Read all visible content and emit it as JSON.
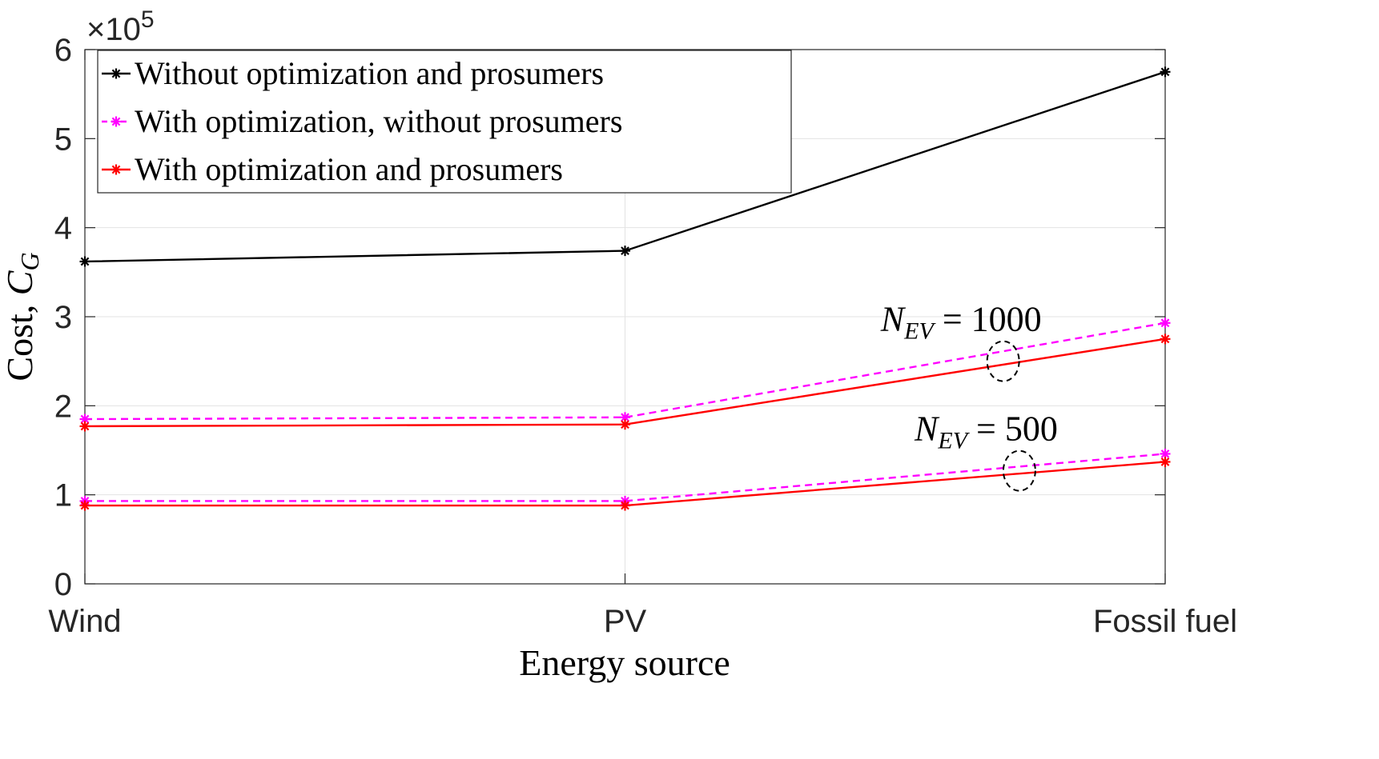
{
  "chart_data": {
    "type": "line",
    "categories": [
      "Wind",
      "PV",
      "Fossil fuel"
    ],
    "xlabel": "Energy source",
    "ylabel_text": "Cost, ",
    "ylabel_symbol": "C",
    "ylabel_subscript": "G",
    "ylim": [
      0,
      6
    ],
    "yticks": [
      "0",
      "1",
      "2",
      "3",
      "4",
      "5",
      "6"
    ],
    "exponent_times": "×10",
    "exponent_power": "5",
    "grid": true,
    "legend_position": "top-left",
    "series": [
      {
        "name": "Without optimization and prosumers",
        "color": "#000000",
        "style": "solid",
        "values": [
          3.62,
          3.74,
          5.75
        ]
      },
      {
        "name": "With optimization, without prosumers",
        "color": "#ff00ff",
        "style": "dashed",
        "group": "N_EV = 1000",
        "values": [
          1.85,
          1.87,
          2.93
        ]
      },
      {
        "name": "With optimization and prosumers",
        "color": "#ff0000",
        "style": "solid",
        "group": "N_EV = 1000",
        "values": [
          1.77,
          1.79,
          2.75
        ]
      },
      {
        "name": "With optimization, without prosumers",
        "color": "#ff00ff",
        "style": "dashed",
        "group": "N_EV = 500",
        "values": [
          0.93,
          0.93,
          1.46
        ]
      },
      {
        "name": "With optimization and prosumers",
        "color": "#ff0000",
        "style": "solid",
        "group": "N_EV = 500",
        "values": [
          0.88,
          0.88,
          1.37
        ]
      }
    ],
    "legend_entries": [
      {
        "label": "Without optimization and prosumers",
        "color": "#000000",
        "style": "solid"
      },
      {
        "label": "With optimization, without prosumers",
        "color": "#ff00ff",
        "style": "dashed"
      },
      {
        "label": "With optimization and prosumers",
        "color": "#ff0000",
        "style": "solid"
      }
    ],
    "annotations": [
      {
        "symbol": "N",
        "subscript": "EV",
        "rest": " = 1000",
        "category_pos": 1.7,
        "value": 2.5
      },
      {
        "symbol": "N",
        "subscript": "EV",
        "rest": " = 500",
        "category_pos": 1.73,
        "value": 1.27
      }
    ]
  }
}
